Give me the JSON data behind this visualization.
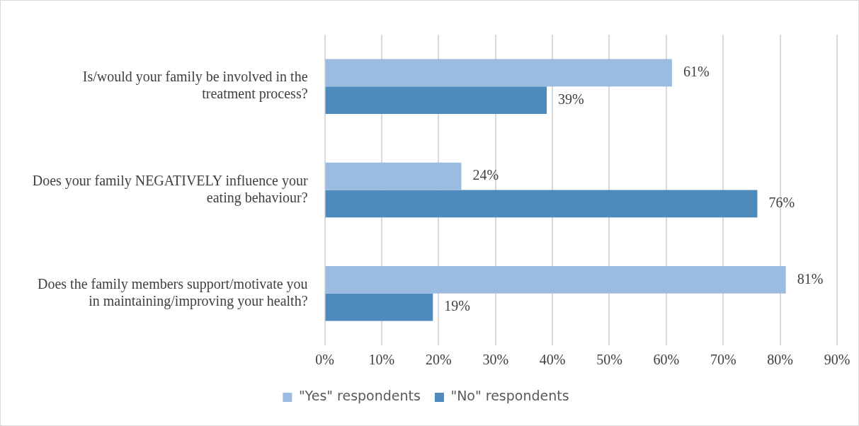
{
  "chart_data": {
    "type": "bar",
    "orientation": "horizontal",
    "categories": [
      "Is/would your family be involved in the treatment process?",
      "Does your family NEGATIVELY influence your eating behaviour?",
      "Does the family members support/motivate you in maintaining/improving your health?"
    ],
    "series": [
      {
        "name": "\"Yes\" respondents",
        "color": "#9bbbe0",
        "values": [
          61,
          24,
          81
        ],
        "value_labels": [
          "61%",
          "24%",
          "81%"
        ]
      },
      {
        "name": "\"No\" respondents",
        "color": "#4f8abd",
        "values": [
          39,
          76,
          19
        ],
        "value_labels": [
          "39%",
          "76%",
          "19%"
        ]
      }
    ],
    "xlim": [
      0,
      90
    ],
    "xticks": [
      {
        "value": 0,
        "label": "0%"
      },
      {
        "value": 10,
        "label": "10%"
      },
      {
        "value": 20,
        "label": "20%"
      },
      {
        "value": 30,
        "label": "30%"
      },
      {
        "value": 40,
        "label": "40%"
      },
      {
        "value": 50,
        "label": "50%"
      },
      {
        "value": 60,
        "label": "60%"
      },
      {
        "value": 70,
        "label": "70%"
      },
      {
        "value": 80,
        "label": "80%"
      },
      {
        "value": 90,
        "label": "90%"
      }
    ],
    "grid": "x",
    "legend": "bottom"
  }
}
